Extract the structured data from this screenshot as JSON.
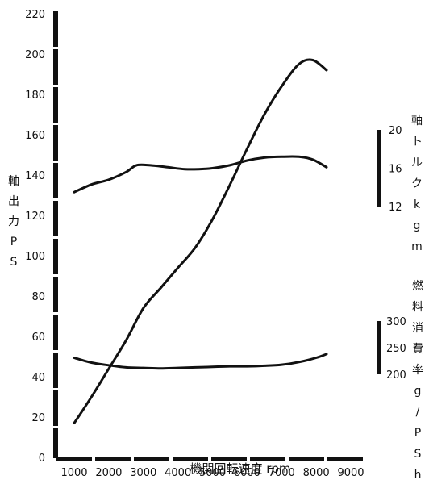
{
  "chart_data": {
    "type": "line",
    "title": "",
    "xlabel": "機関回転速度 rpm",
    "xlim": [
      700,
      9000
    ],
    "x_ticks": [
      1000,
      2000,
      3000,
      4000,
      5000,
      6000,
      7000,
      8000,
      9000
    ],
    "left_axis": {
      "label": "軸出力PS",
      "ylim": [
        0,
        220
      ],
      "ticks": [
        0,
        20,
        40,
        60,
        80,
        100,
        120,
        140,
        160,
        180,
        200,
        220
      ]
    },
    "right_axis_torque": {
      "label": "軸トルクkgm",
      "ylim": [
        12,
        20
      ],
      "ticks": [
        12,
        16,
        20
      ]
    },
    "right_axis_fuel": {
      "label": "燃料消費率g/PSh",
      "ylim": [
        200,
        300
      ],
      "ticks": [
        200,
        250,
        300
      ]
    },
    "grid": false,
    "series": [
      {
        "axis": "left",
        "x": [
          1000,
          1500,
          2000,
          2500,
          3000,
          3500,
          4000,
          4500,
          5000,
          5500,
          6000,
          6500,
          7000,
          7500,
          7900,
          8300
        ],
        "values": [
          17,
          30,
          44,
          58,
          74,
          84,
          94,
          104,
          118,
          135,
          153,
          170,
          184,
          195,
          197,
          192
        ]
      },
      {
        "axis": "torque",
        "x": [
          1000,
          1500,
          2000,
          2500,
          2800,
          3200,
          3700,
          4200,
          4600,
          5000,
          5500,
          6000,
          6500,
          7000,
          7500,
          7900,
          8300
        ],
        "values": [
          13.5,
          14.3,
          14.8,
          15.6,
          16.3,
          16.3,
          16.1,
          15.9,
          15.9,
          16.0,
          16.3,
          16.8,
          17.1,
          17.2,
          17.2,
          16.9,
          16.1
        ]
      },
      {
        "axis": "fuel",
        "x": [
          1000,
          1500,
          2000,
          2500,
          3000,
          3500,
          4000,
          4500,
          5000,
          5500,
          6000,
          6500,
          7000,
          7500,
          8000,
          8300
        ],
        "values": [
          231,
          222,
          217,
          213,
          212,
          211,
          212,
          213,
          214,
          215,
          215,
          216,
          218,
          223,
          231,
          238
        ]
      }
    ]
  }
}
